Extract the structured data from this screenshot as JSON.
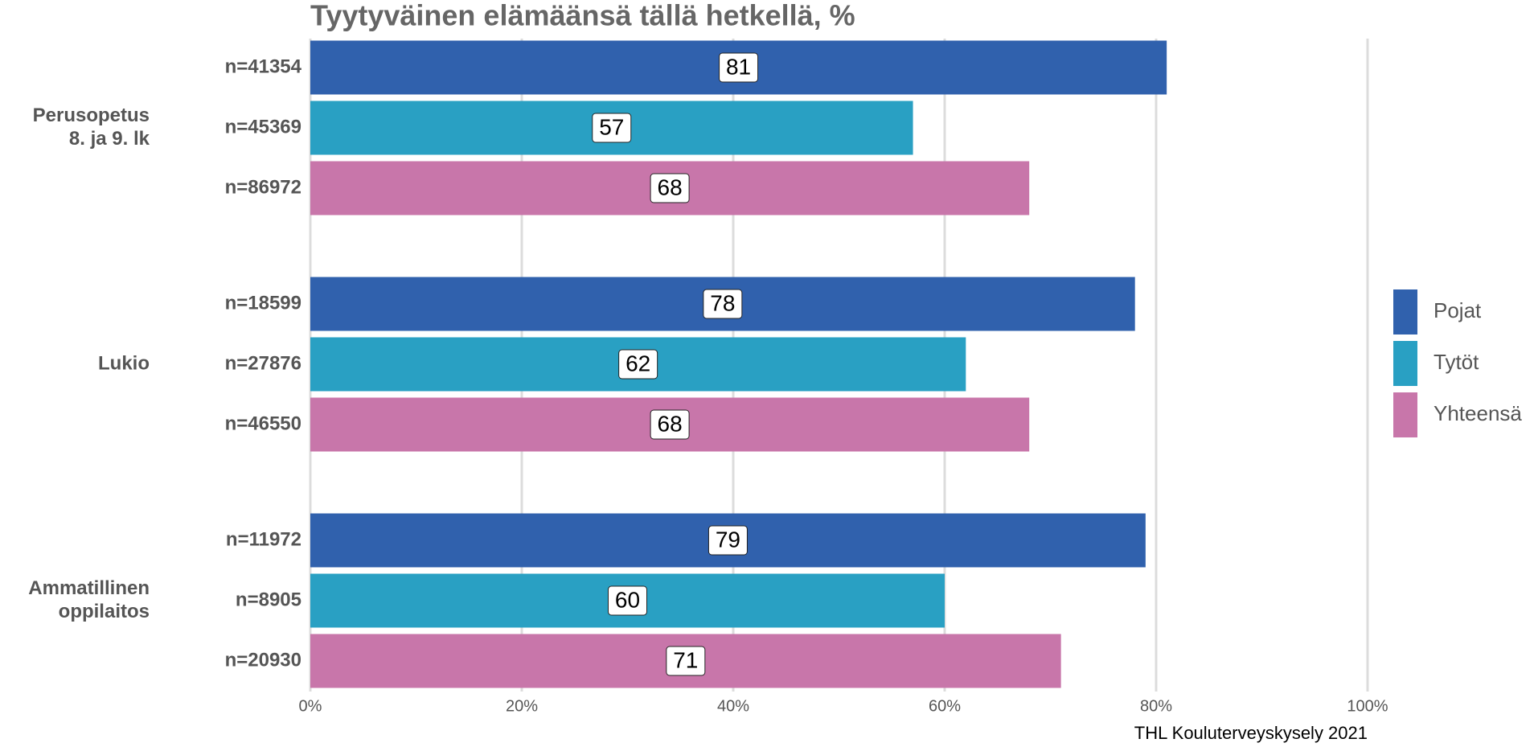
{
  "chart_data": {
    "type": "bar",
    "orientation": "horizontal",
    "title": "Tyytyväinen elämäänsä tällä hetkellä, %",
    "categories": [
      [
        "Perusopetus",
        "8. ja 9. lk"
      ],
      [
        "Lukio"
      ],
      [
        "Ammatillinen",
        "oppilaitos"
      ]
    ],
    "series": [
      {
        "name": "Pojat",
        "color": "#3061ad",
        "values": [
          81,
          78,
          79
        ],
        "sample_sizes": [
          "n=41354",
          "n=18599",
          "n=11972"
        ]
      },
      {
        "name": "Tytöt",
        "color": "#29a0c3",
        "values": [
          57,
          62,
          60
        ],
        "sample_sizes": [
          "n=45369",
          "n=27876",
          "n=8905"
        ]
      },
      {
        "name": "Yhteensä",
        "color": "#c876aa",
        "values": [
          68,
          68,
          71
        ],
        "sample_sizes": [
          "n=86972",
          "n=46550",
          "n=20930"
        ]
      }
    ],
    "xlim": [
      0,
      100
    ],
    "xticks": [
      {
        "value": 0,
        "label": "0%"
      },
      {
        "value": 20,
        "label": "20%"
      },
      {
        "value": 40,
        "label": "40%"
      },
      {
        "value": 60,
        "label": "60%"
      },
      {
        "value": 80,
        "label": "80%"
      },
      {
        "value": 100,
        "label": "100%"
      }
    ],
    "grid": true,
    "legend": "right",
    "caption": "THL Kouluterveyskysely 2021"
  }
}
